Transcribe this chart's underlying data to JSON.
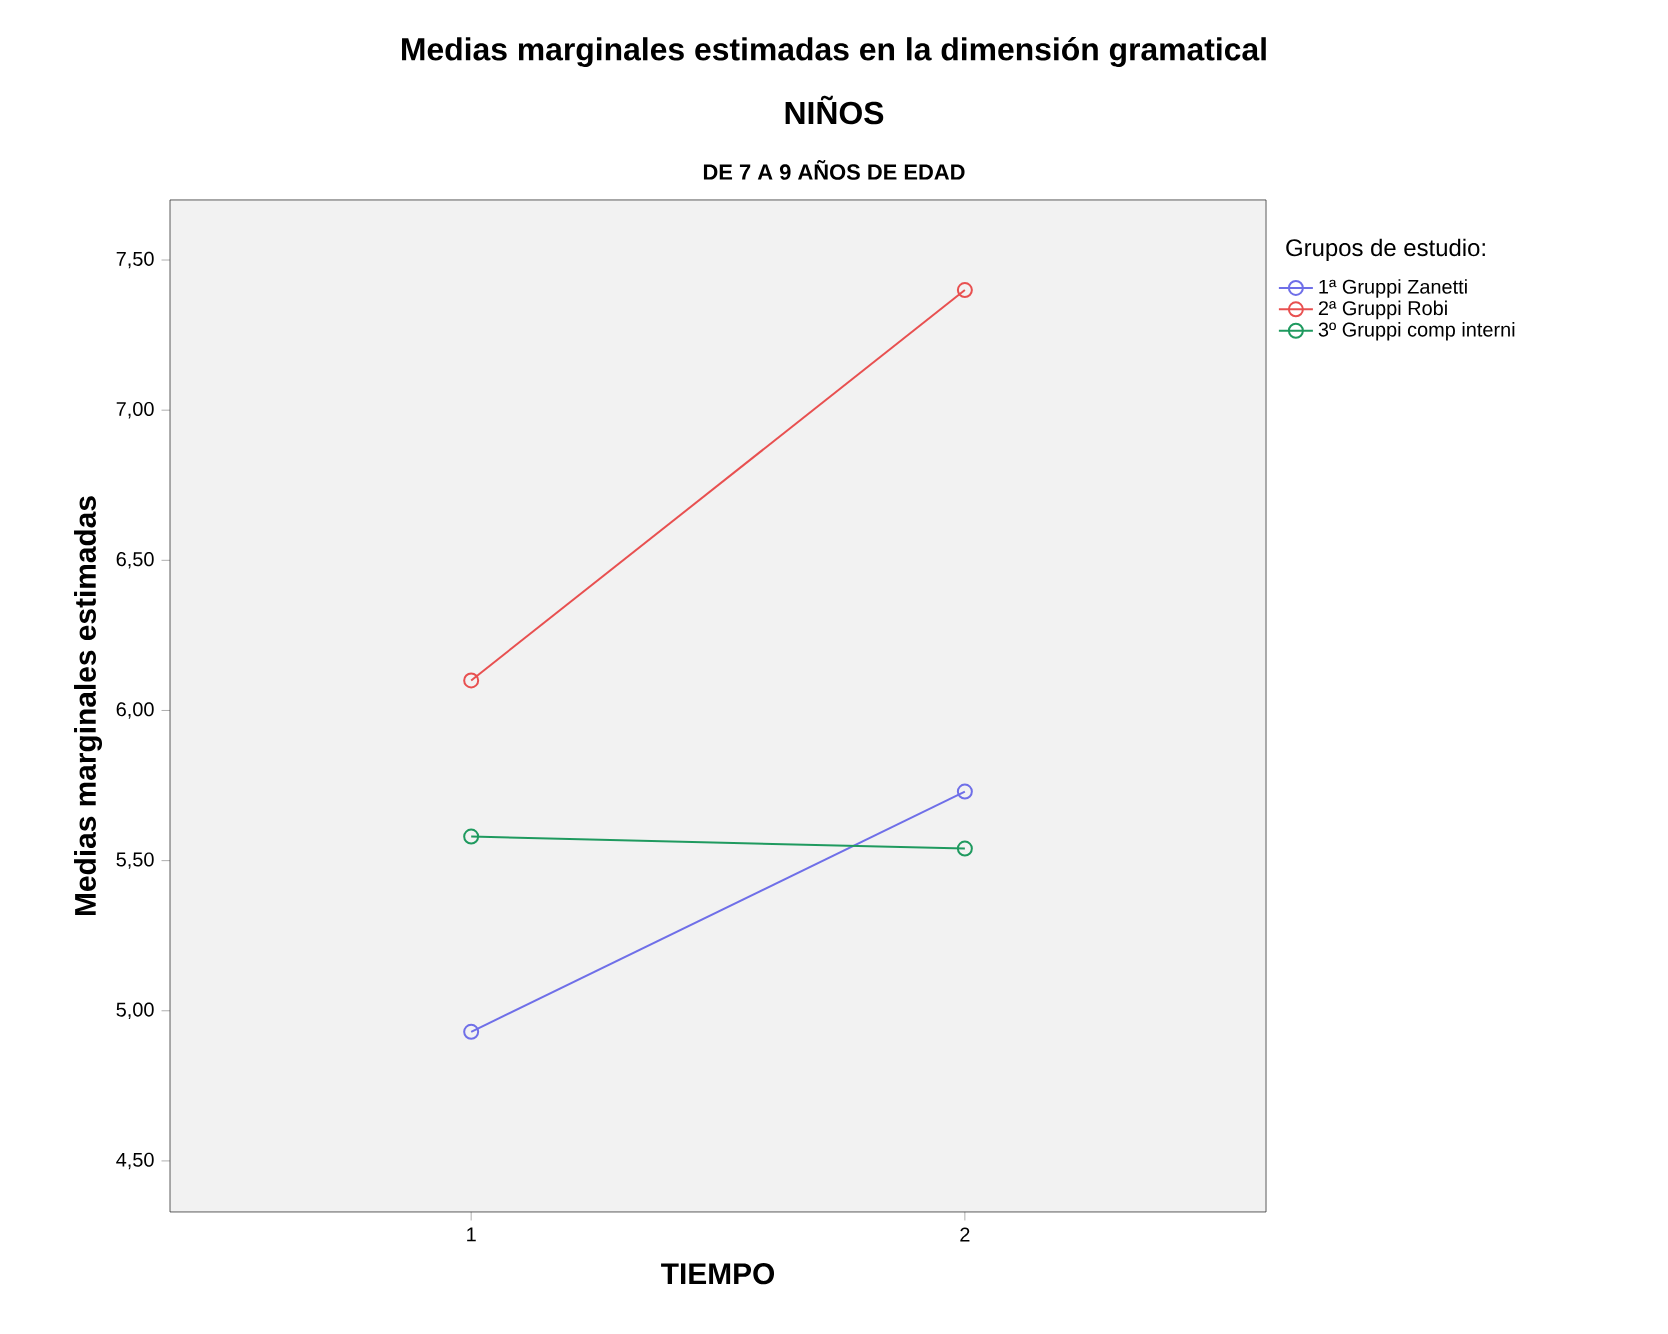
{
  "chart_data": {
    "type": "line",
    "title": "Medias marginales estimadas en la dimensión gramatical",
    "subtitle": "NIÑOS",
    "annotations": [
      "DE 7 A 9 AÑOS DE EDAD"
    ],
    "xlabel": "TIEMPO",
    "ylabel": "Medias marginales estimadas",
    "legend_title": "Grupos de estudio:",
    "categories": [
      "1",
      "2"
    ],
    "series": [
      {
        "name": "1ª Gruppi Zanetti",
        "color": "#6f6fe8",
        "values": [
          4.93,
          5.73
        ]
      },
      {
        "name": "2ª Gruppi Robi",
        "color": "#e85050",
        "values": [
          6.1,
          7.4
        ]
      },
      {
        "name": "3º Gruppi comp interni",
        "color": "#1f9a5f",
        "values": [
          5.58,
          5.54
        ]
      }
    ],
    "ylim": [
      4.33,
      7.7
    ],
    "yticks": [
      {
        "value": 4.5,
        "label": "4,50"
      },
      {
        "value": 5.0,
        "label": "5,00"
      },
      {
        "value": 5.5,
        "label": "5,50"
      },
      {
        "value": 6.0,
        "label": "6,00"
      },
      {
        "value": 6.5,
        "label": "6,50"
      },
      {
        "value": 7.0,
        "label": "7,00"
      },
      {
        "value": 7.5,
        "label": "7,50"
      }
    ],
    "grid": false,
    "legend": "top right",
    "marker": "circle",
    "line_style": "solid"
  }
}
